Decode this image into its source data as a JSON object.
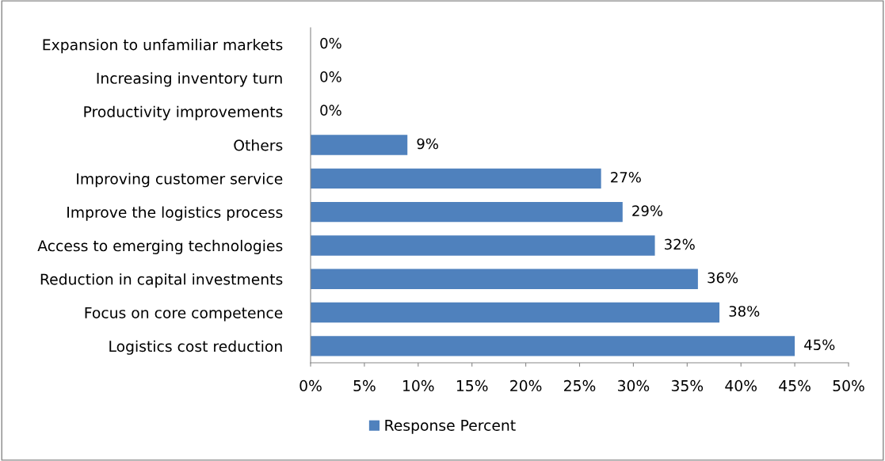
{
  "chart_data": {
    "type": "bar",
    "orientation": "horizontal",
    "categories": [
      "Expansion to unfamiliar markets",
      "Increasing inventory turn",
      "Productivity improvements",
      "Others",
      "Improving customer service",
      "Improve the logistics process",
      "Access to emerging technologies",
      "Reduction in capital investments",
      "Focus on core competence",
      "Logistics cost reduction"
    ],
    "series": [
      {
        "name": "Response Percent",
        "color": "#4f81bd",
        "values": [
          0,
          0,
          0,
          9,
          27,
          29,
          32,
          36,
          38,
          45
        ],
        "value_labels": [
          "0%",
          "0%",
          "0%",
          "9%",
          "27%",
          "29%",
          "32%",
          "36%",
          "38%",
          "45%"
        ]
      }
    ],
    "xlim": [
      0,
      50
    ],
    "xticks": [
      {
        "value": 0,
        "label": "0%"
      },
      {
        "value": 5,
        "label": "5%"
      },
      {
        "value": 10,
        "label": "10%"
      },
      {
        "value": 15,
        "label": "15%"
      },
      {
        "value": 20,
        "label": "20%"
      },
      {
        "value": 25,
        "label": "25%"
      },
      {
        "value": 30,
        "label": "30%"
      },
      {
        "value": 35,
        "label": "35%"
      },
      {
        "value": 40,
        "label": "40%"
      },
      {
        "value": 45,
        "label": "45%"
      },
      {
        "value": 50,
        "label": "50%"
      }
    ],
    "grid": false,
    "legend": "bottom"
  }
}
